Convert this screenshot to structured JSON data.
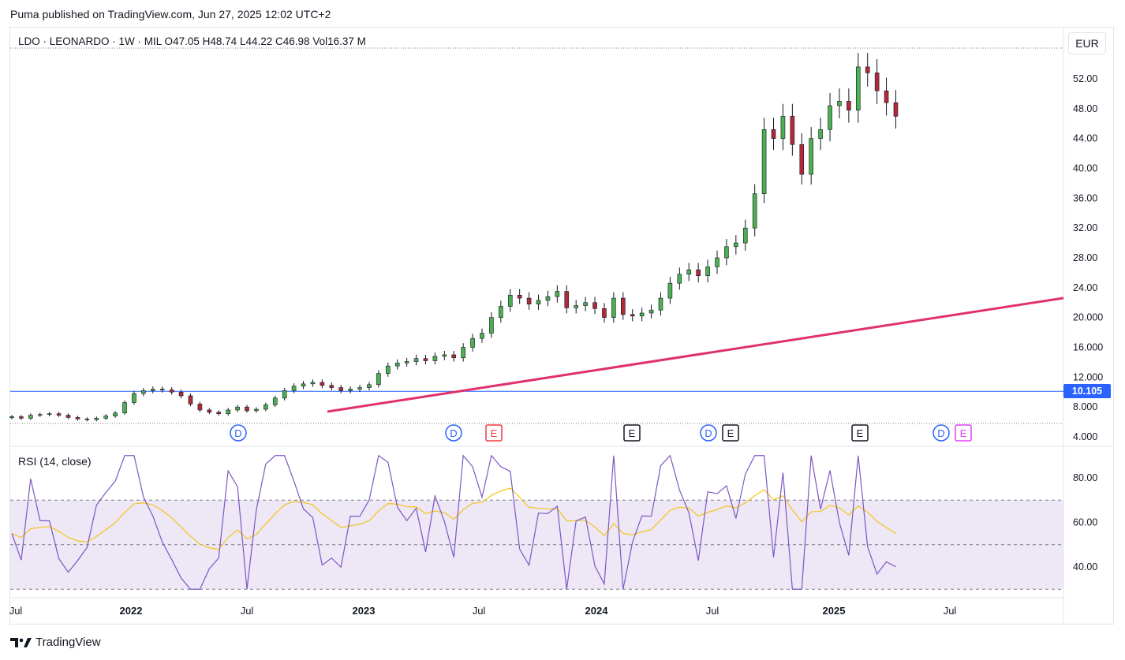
{
  "header": {
    "published": "Puma published on TradingView.com, Jun 27, 2025 12:02 UTC+2"
  },
  "legend": {
    "symbol": "LDO · LEONARDO · 1W · MIL",
    "open_label": "O",
    "open": "47.05",
    "high_label": "H",
    "high": "48.74",
    "low_label": "L",
    "low": "44.22",
    "close_label": "C",
    "close": "46.98",
    "vol_label": "Vol",
    "vol": "16.37 M"
  },
  "currency_button": "EUR",
  "last_line_label": "10.105",
  "rsi": {
    "title": "RSI (14, close)"
  },
  "brand": {
    "name": "TradingView"
  },
  "colors": {
    "up": "#4caf50",
    "down": "#b02a3a",
    "trendline": "#e0306e",
    "hline": "#2962ff",
    "rsi": "#7e57c2",
    "rsi_ma": "#f5c518",
    "rsi_band": "#ede7f6"
  },
  "chart_data": [
    {
      "type": "candlestick",
      "title": "LDO · LEONARDO · 1W · MIL",
      "price_axis_ticks": [
        "52.00",
        "48.00",
        "44.00",
        "40.00",
        "36.00",
        "32.00",
        "28.00",
        "24.00",
        "20.000",
        "16.000",
        "12.000",
        "8.000",
        "4.000"
      ],
      "price_axis_values": [
        52,
        48,
        44,
        40,
        36,
        32,
        28,
        24,
        20,
        16,
        12,
        8,
        4
      ],
      "time_axis_ticks": [
        "Jul",
        "2022",
        "Jul",
        "2023",
        "Jul",
        "2024",
        "Jul",
        "2025",
        "Jul"
      ],
      "horizontal_line": 10.105,
      "trendline": {
        "from": [
          "2022-11",
          7.0
        ],
        "to": [
          "2025-09",
          22.5
        ]
      },
      "events": [
        {
          "label": "D",
          "kind": "dividend"
        },
        {
          "label": "D",
          "kind": "dividend"
        },
        {
          "label": "E",
          "kind": "earnings-red"
        },
        {
          "label": "E",
          "kind": "earnings"
        },
        {
          "label": "D",
          "kind": "dividend"
        },
        {
          "label": "E",
          "kind": "earnings"
        },
        {
          "label": "E",
          "kind": "earnings"
        },
        {
          "label": "D",
          "kind": "dividend"
        },
        {
          "label": "E",
          "kind": "earnings-future"
        }
      ],
      "close_path": [
        6.7,
        6.5,
        6.9,
        7.0,
        7.1,
        6.9,
        6.6,
        6.4,
        6.3,
        6.5,
        6.8,
        7.2,
        8.6,
        9.8,
        10.2,
        10.4,
        10.3,
        10.0,
        9.5,
        8.4,
        7.6,
        7.3,
        7.1,
        7.6,
        8.0,
        7.5,
        7.7,
        8.3,
        9.2,
        10.2,
        10.8,
        11.1,
        11.3,
        10.9,
        10.6,
        10.2,
        10.4,
        10.6,
        11.0,
        12.5,
        13.5,
        13.9,
        14.1,
        14.5,
        14.2,
        14.8,
        15.0,
        14.6,
        16.0,
        17.2,
        17.9,
        20.0,
        21.5,
        23.0,
        22.6,
        21.8,
        22.3,
        22.8,
        23.5,
        21.3,
        21.6,
        22.0,
        21.2,
        20.0,
        22.6,
        20.4,
        20.2,
        20.6,
        21.0,
        22.6,
        24.6,
        25.8,
        26.4,
        25.6,
        26.8,
        28.0,
        29.5,
        30.0,
        32.0,
        36.6,
        45.2,
        44.0,
        47.0,
        43.2,
        39.2,
        44.0,
        45.2,
        48.4,
        49.0,
        47.8,
        53.6,
        52.8,
        50.4,
        48.8,
        46.98
      ],
      "series": [
        {
          "name": "RSI",
          "axis_ticks": [
            "80.00",
            "60.00",
            "40.00"
          ],
          "levels": [
            70,
            50,
            30
          ]
        }
      ]
    }
  ]
}
